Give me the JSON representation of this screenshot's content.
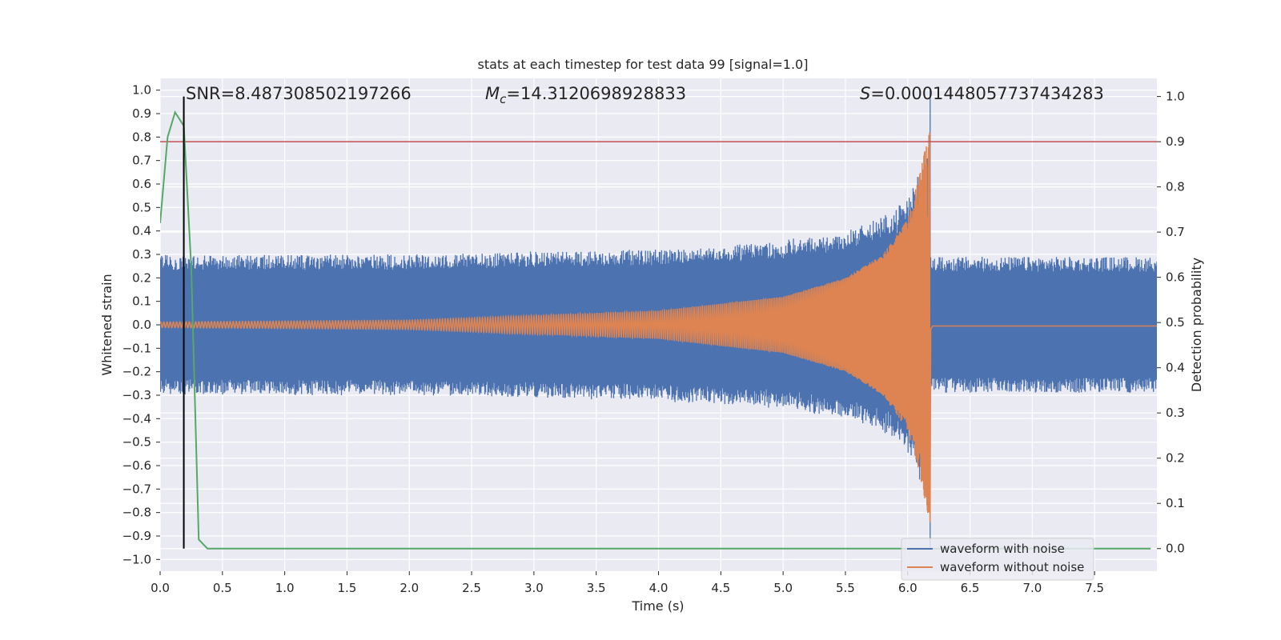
{
  "chart_data": {
    "type": "line",
    "title": "stats at each timestep for test data 99 [signal=1.0]",
    "xlabel": "Time (s)",
    "ylabel_left": "Whitened strain",
    "ylabel_right": "Detection probability",
    "xlim": [
      0.0,
      8.0
    ],
    "ylim_left": [
      -1.05,
      1.05
    ],
    "ylim_right": [
      -0.05,
      1.04
    ],
    "x_ticks": [
      "0.0",
      "0.5",
      "1.0",
      "1.5",
      "2.0",
      "2.5",
      "3.0",
      "3.5",
      "4.0",
      "4.5",
      "5.0",
      "5.5",
      "6.0",
      "6.5",
      "7.0",
      "7.5"
    ],
    "y_ticks_left": [
      "1.0",
      "0.9",
      "0.8",
      "0.7",
      "0.6",
      "0.5",
      "0.4",
      "0.3",
      "0.2",
      "0.1",
      "0.0",
      "−0.1",
      "−0.2",
      "−0.3",
      "−0.4",
      "−0.5",
      "−0.6",
      "−0.7",
      "−0.8",
      "−0.9",
      "−1.0"
    ],
    "y_ticks_right": [
      "1.0",
      "0.9",
      "0.8",
      "0.7",
      "0.6",
      "0.5",
      "0.4",
      "0.3",
      "0.2",
      "0.1",
      "0.0"
    ],
    "annotations": {
      "snr": "SNR=8.487308502197266",
      "mc_symbol": "M",
      "mc_sub": "c",
      "mc_value": "=14.3120698928833",
      "s_symbol": "S",
      "s_value": "=0.0001448057737434283"
    },
    "grid": true,
    "legend_position": "lower-right",
    "colors": {
      "background": "#eaeaf2",
      "grid": "#ffffff",
      "noisy": "#4c72b0",
      "clean": "#dd8452",
      "probability": "#55a868",
      "threshold": "#c44e52",
      "marker": "#000000"
    },
    "series": [
      {
        "name": "waveform with noise",
        "color": "#4c72b0",
        "noise_band": [
          -0.29,
          0.29
        ],
        "merger_time": 6.18,
        "merger_peak": 1.0,
        "merger_trough": -0.95
      },
      {
        "name": "waveform without noise",
        "color": "#dd8452",
        "merger_time": 6.18,
        "envelope": [
          [
            0.0,
            0.012
          ],
          [
            2.0,
            0.02
          ],
          [
            4.0,
            0.06
          ],
          [
            5.0,
            0.12
          ],
          [
            5.5,
            0.2
          ],
          [
            5.8,
            0.3
          ],
          [
            6.0,
            0.45
          ],
          [
            6.1,
            0.65
          ],
          [
            6.18,
            0.85
          ]
        ],
        "post_merger_level": -0.005
      },
      {
        "name": "detection probability",
        "axis": "right",
        "color": "#55a868",
        "x": [
          0.0,
          0.06,
          0.12,
          0.19,
          0.25,
          0.31,
          0.38,
          0.5,
          1.0,
          2.0,
          3.0,
          4.0,
          5.0,
          6.0,
          7.0,
          7.95
        ],
        "y": [
          0.72,
          0.91,
          0.965,
          0.935,
          0.62,
          0.02,
          0.0,
          0.0,
          0.0,
          0.0,
          0.0,
          0.0,
          0.0,
          0.0,
          0.0,
          0.0
        ]
      }
    ],
    "threshold_right": 0.9,
    "vertical_marker_x": 0.19
  }
}
